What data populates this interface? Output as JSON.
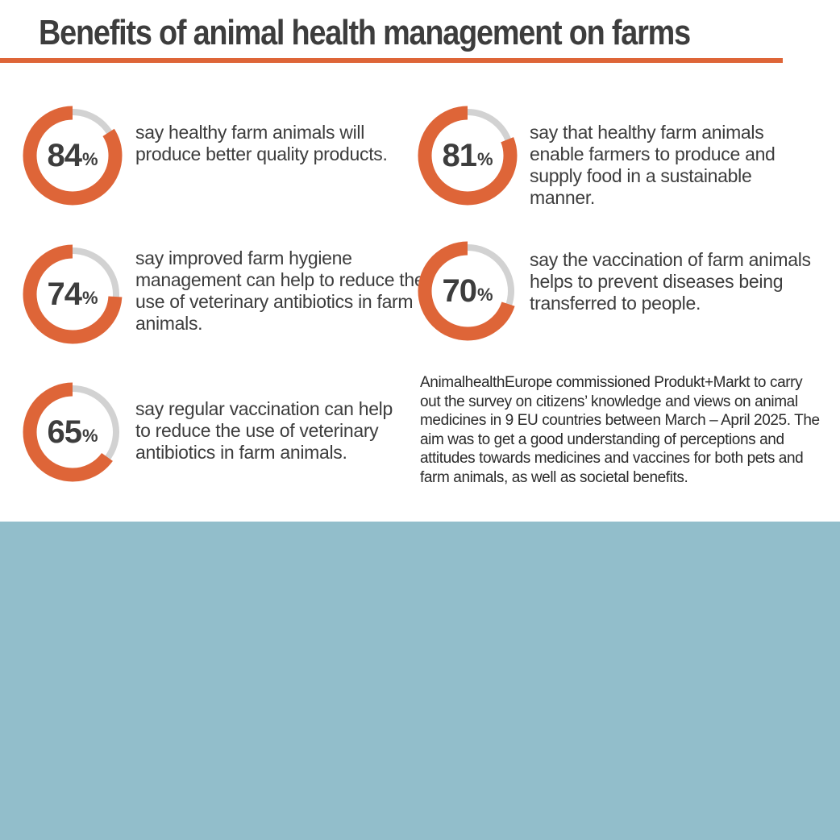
{
  "title": "Benefits of animal health management on farms",
  "colors": {
    "accent": "#DE6538",
    "track": "#D2D2D2",
    "text": "#3D3D3D",
    "panel": "#92BECB"
  },
  "chart_data": {
    "type": "donut",
    "unit": "%",
    "items": [
      {
        "value": 84,
        "label": "84",
        "unit": "%",
        "text": "say healthy farm animals will produce better quality products."
      },
      {
        "value": 81,
        "label": "81",
        "unit": "%",
        "text": "say that healthy farm animals enable farmers to produce and supply food in a sustainable manner."
      },
      {
        "value": 74,
        "label": "74",
        "unit": "%",
        "text": "say improved farm hygiene management can help to reduce the use of veterinary antibiotics in farm animals."
      },
      {
        "value": 70,
        "label": "70",
        "unit": "%",
        "text": "say the vaccination of farm animals helps to prevent diseases being transferred to people."
      },
      {
        "value": 65,
        "label": "65",
        "unit": "%",
        "text": "say regular vaccination can help to reduce the use of veterinary antibiotics in farm animals."
      }
    ]
  },
  "survey_note": "AnimalhealthEurope commissioned Produkt+Markt to carry out the survey on citizens’ knowledge and views on animal medicines in 9 EU countries between March – April 2025. The aim was to get a good understanding of perceptions and attitudes towards medicines and vaccines for both pets and farm animals, as well as societal benefits."
}
